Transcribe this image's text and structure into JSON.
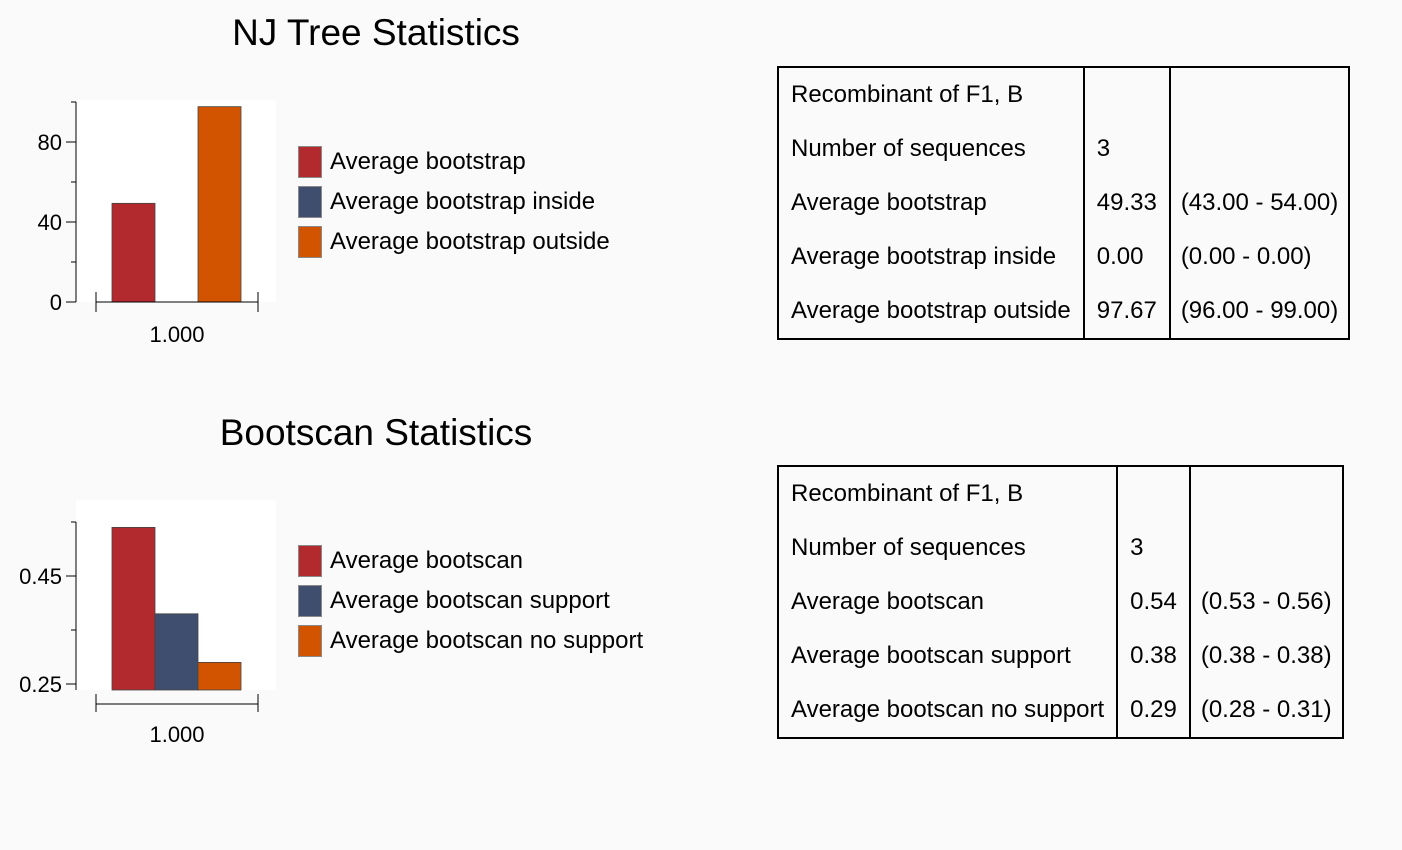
{
  "colors": {
    "red": "#b22a2e",
    "blue": "#3f4d6e",
    "orange": "#d35400"
  },
  "nj": {
    "title": "NJ Tree Statistics",
    "legend": [
      {
        "label": "Average bootstrap",
        "color": "#b22a2e"
      },
      {
        "label": "Average bootstrap inside",
        "color": "#3f4d6e"
      },
      {
        "label": "Average bootstrap outside",
        "color": "#d35400"
      }
    ],
    "table": [
      [
        "Recombinant of F1, B",
        "",
        ""
      ],
      [
        "Number of sequences",
        "3",
        ""
      ],
      [
        "Average bootstrap",
        "49.33",
        "(43.00 - 54.00)"
      ],
      [
        "Average bootstrap inside",
        "0.00",
        "(0.00 - 0.00)"
      ],
      [
        "Average bootstrap outside",
        "97.67",
        "(96.00 - 99.00)"
      ]
    ]
  },
  "bootscan": {
    "title": "Bootscan Statistics",
    "legend": [
      {
        "label": "Average bootscan",
        "color": "#b22a2e"
      },
      {
        "label": "Average bootscan support",
        "color": "#3f4d6e"
      },
      {
        "label": "Average bootscan no support",
        "color": "#d35400"
      }
    ],
    "table": [
      [
        "Recombinant of F1, B",
        "",
        ""
      ],
      [
        "Number of sequences",
        "3",
        ""
      ],
      [
        "Average bootscan",
        "0.54",
        "(0.53 - 0.56)"
      ],
      [
        "Average bootscan support",
        "0.38",
        "(0.38 - 0.38)"
      ],
      [
        "Average bootscan no support",
        "0.29",
        "(0.28 - 0.31)"
      ]
    ]
  },
  "chart_data": [
    {
      "type": "bar",
      "title": "NJ Tree Statistics",
      "categories": [
        "1.000"
      ],
      "series": [
        {
          "name": "Average bootstrap",
          "values": [
            49.33
          ]
        },
        {
          "name": "Average bootstrap inside",
          "values": [
            0.0
          ]
        },
        {
          "name": "Average bootstrap outside",
          "values": [
            97.67
          ]
        }
      ],
      "ylim": [
        0,
        100
      ],
      "yticks": [
        0,
        40,
        80
      ],
      "ytick_labels": [
        "0",
        "40",
        "80"
      ],
      "minor_yticks": [
        20,
        60,
        100
      ],
      "legend_position": "right",
      "grid": false
    },
    {
      "type": "bar",
      "title": "Bootscan Statistics",
      "categories": [
        "1.000"
      ],
      "series": [
        {
          "name": "Average bootscan",
          "values": [
            0.54
          ]
        },
        {
          "name": "Average bootscan support",
          "values": [
            0.38
          ]
        },
        {
          "name": "Average bootscan no support",
          "values": [
            0.29
          ]
        }
      ],
      "ylim": [
        0.23,
        0.55
      ],
      "yticks": [
        0.25,
        0.45
      ],
      "ytick_labels": [
        "0.25",
        "0.45"
      ],
      "minor_yticks": [
        0.35,
        0.55
      ],
      "legend_position": "right",
      "grid": false
    }
  ]
}
